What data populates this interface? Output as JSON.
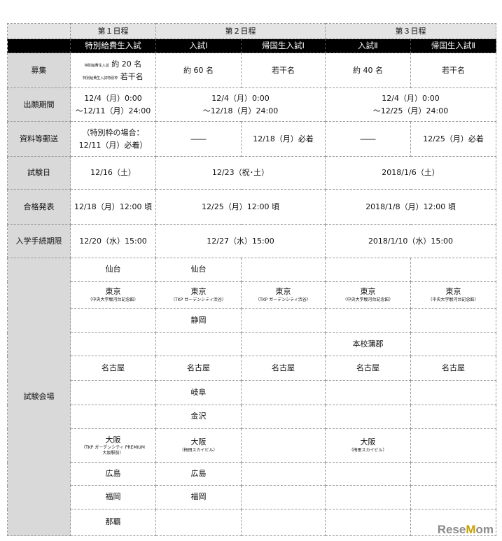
{
  "header": {
    "days": [
      "第１日程",
      "第２日程",
      "第３日程"
    ],
    "exams": [
      "特別給費生入試",
      "入試Ⅰ",
      "帰国生入試Ⅰ",
      "入試Ⅱ",
      "帰国生入試Ⅱ"
    ]
  },
  "rows": {
    "boshu": {
      "label": "募集",
      "c1a_tag": "特別給費生入試",
      "c1a": "約 20 名",
      "c1b_tag": "特別給費生入試特別枠",
      "c1b": "若干名",
      "c2": "約 60 名",
      "c3": "若干名",
      "c4": "約 40 名",
      "c5": "若干名"
    },
    "shutsugan": {
      "label": "出願期間",
      "c1a": "12/4（月）0:00",
      "c1b": "～12/11（月）24:00",
      "c2a": "12/4（月）0:00",
      "c2b": "～12/18（月）24:00",
      "c4a": "12/4（月）0:00",
      "c4b": "～12/25（月）24:00"
    },
    "shiryo": {
      "label": "資料等郵送",
      "c1a": "（特別枠の場合：",
      "c1b": "12/11（月）必着）",
      "c2": "――",
      "c3": "12/18（月）必着",
      "c4": "――",
      "c5": "12/25（月）必着"
    },
    "shikenbi": {
      "label": "試験日",
      "c1": "12/16（土）",
      "c2": "12/23（祝･土）",
      "c4": "2018/1/6（土）"
    },
    "gokaku": {
      "label": "合格発表",
      "c1": "12/18（月）12:00 頃",
      "c2": "12/25（月）12:00 頃",
      "c4": "2018/1/8（月）12:00 頃"
    },
    "tetsuzuki": {
      "label": "入学手続期限",
      "c1": "12/20（水）15:00",
      "c2": "12/27（水）15:00",
      "c4": "2018/1/10（水）15:00"
    }
  },
  "venue": {
    "label": "試験会場",
    "rows": [
      [
        [
          "仙台",
          ""
        ],
        [
          "仙台",
          ""
        ],
        [
          "",
          ""
        ],
        [
          "",
          ""
        ],
        [
          "",
          ""
        ]
      ],
      [
        [
          "東京",
          "（中央大学駿河台記念館）"
        ],
        [
          "東京",
          "（TKP ガーデンシティ渋谷）"
        ],
        [
          "東京",
          "（TKP ガーデンシティ渋谷）"
        ],
        [
          "東京",
          "（中央大学駿河台記念館）"
        ],
        [
          "東京",
          "（中央大学駿河台記念館）"
        ]
      ],
      [
        [
          "",
          ""
        ],
        [
          "静岡",
          ""
        ],
        [
          "",
          ""
        ],
        [
          "",
          ""
        ],
        [
          "",
          ""
        ]
      ],
      [
        [
          "",
          ""
        ],
        [
          "",
          ""
        ],
        [
          "",
          ""
        ],
        [
          "本校蒲郡",
          ""
        ],
        [
          "",
          ""
        ]
      ],
      [
        [
          "名古屋",
          ""
        ],
        [
          "名古屋",
          ""
        ],
        [
          "名古屋",
          ""
        ],
        [
          "名古屋",
          ""
        ],
        [
          "名古屋",
          ""
        ]
      ],
      [
        [
          "",
          ""
        ],
        [
          "岐阜",
          ""
        ],
        [
          "",
          ""
        ],
        [
          "",
          ""
        ],
        [
          "",
          ""
        ]
      ],
      [
        [
          "",
          ""
        ],
        [
          "金沢",
          ""
        ],
        [
          "",
          ""
        ],
        [
          "",
          ""
        ],
        [
          "",
          ""
        ]
      ],
      [
        [
          "大阪",
          "（TKP ガーデンシティ PREMIUM 大阪駅前）"
        ],
        [
          "大阪",
          "（梅田スカイビル）"
        ],
        [
          "",
          ""
        ],
        [
          "大阪",
          "（梅田スカイビル）"
        ],
        [
          "",
          ""
        ]
      ],
      [
        [
          "広島",
          ""
        ],
        [
          "広島",
          ""
        ],
        [
          "",
          ""
        ],
        [
          "",
          ""
        ],
        [
          "",
          ""
        ]
      ],
      [
        [
          "福岡",
          ""
        ],
        [
          "福岡",
          ""
        ],
        [
          "",
          ""
        ],
        [
          "",
          ""
        ],
        [
          "",
          ""
        ]
      ],
      [
        [
          "那覇",
          ""
        ],
        [
          "",
          ""
        ],
        [
          "",
          ""
        ],
        [
          "",
          ""
        ],
        [
          "",
          ""
        ]
      ]
    ]
  },
  "watermark": "ReseMom"
}
